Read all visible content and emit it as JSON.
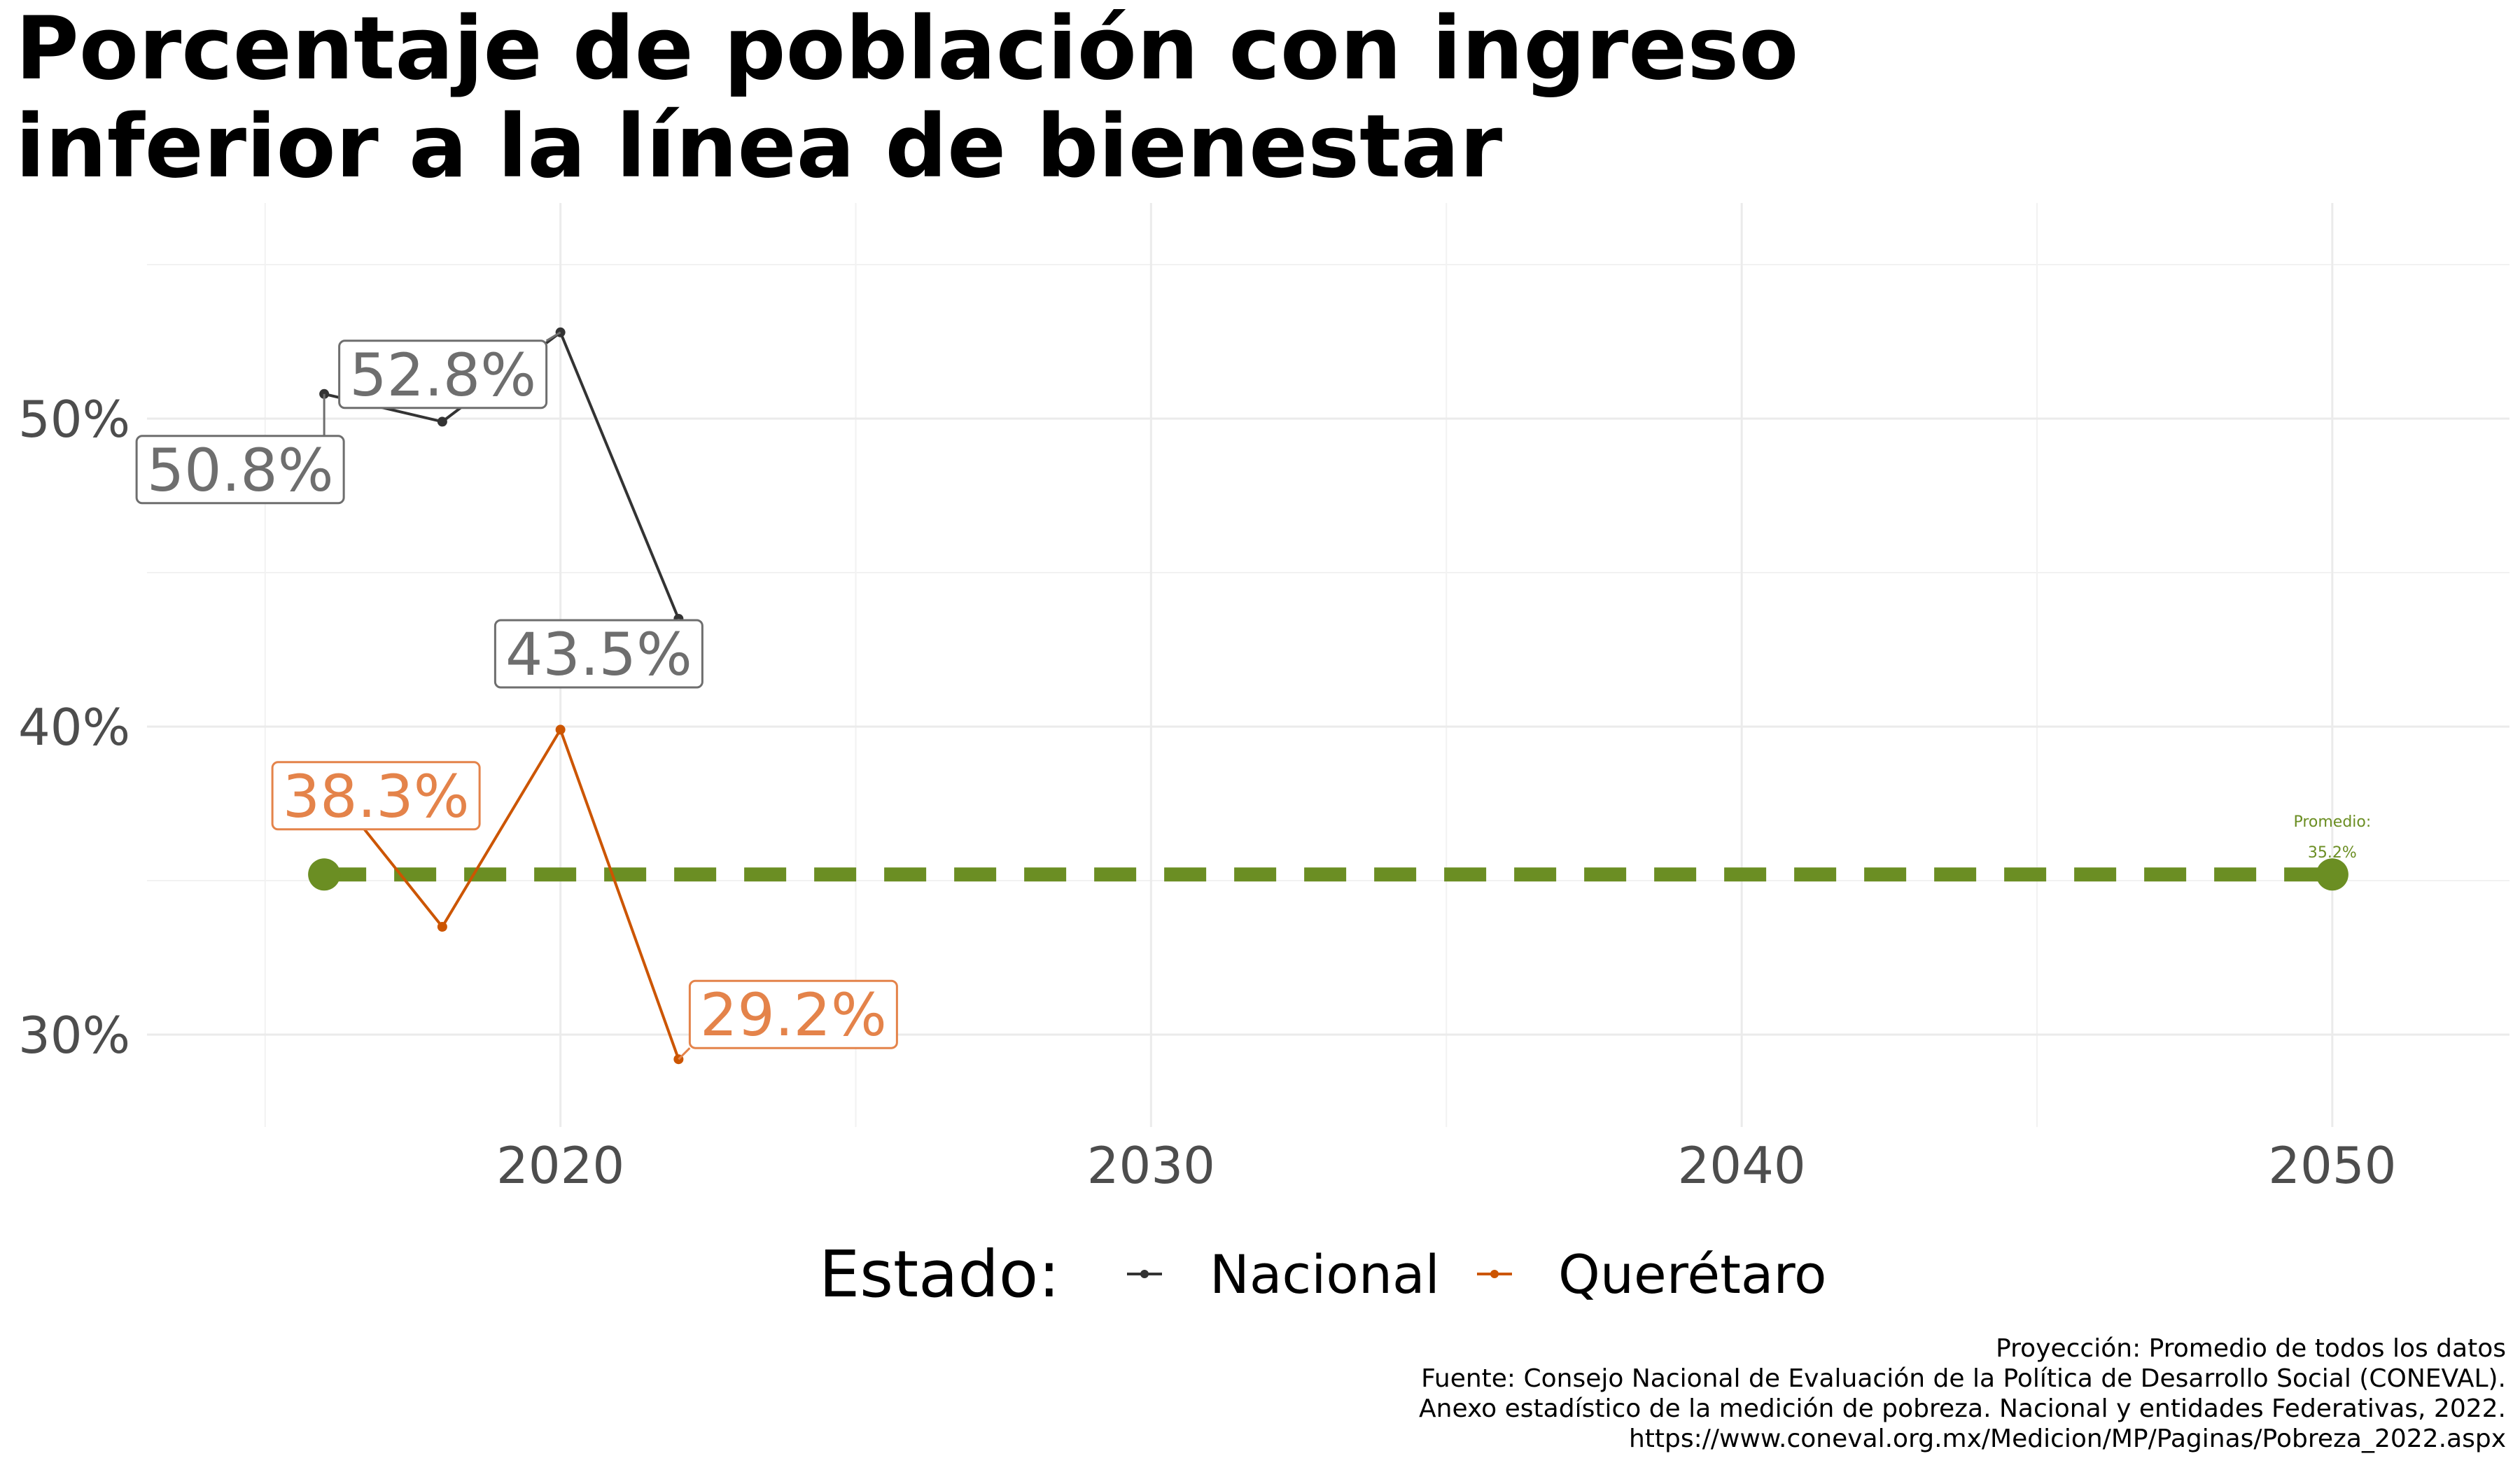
{
  "chart_data": {
    "type": "line",
    "title_lines": [
      "Porcentaje de población con ingreso",
      "inferior a la línea de bienestar"
    ],
    "xlabel": "",
    "ylabel": "",
    "x_ticks": [
      2020,
      2030,
      2040,
      2050
    ],
    "y_ticks": [
      30,
      40,
      50
    ],
    "y_tick_labels": [
      "30%",
      "40%",
      "50%"
    ],
    "xlim": [
      2013,
      2053
    ],
    "ylim": [
      27,
      57
    ],
    "grid": true,
    "legend": {
      "title": "Estado:",
      "placement": "bottom"
    },
    "series": [
      {
        "name": "Nacional",
        "color": "#333333",
        "label_color": "#6e6e6e",
        "x": [
          2016,
          2018,
          2020,
          2022
        ],
        "y": [
          50.8,
          49.9,
          52.8,
          43.5
        ],
        "labels": [
          {
            "index": 0,
            "text": "50.8%"
          },
          {
            "index": 2,
            "text": "52.8%"
          },
          {
            "index": 3,
            "text": "43.5%"
          }
        ]
      },
      {
        "name": "Querétaro",
        "color": "#cc5500",
        "label_color": "#e4834a",
        "x": [
          2016,
          2018,
          2020,
          2022
        ],
        "y": [
          38.3,
          33.5,
          39.9,
          29.2
        ],
        "labels": [
          {
            "index": 0,
            "text": "38.3%"
          },
          {
            "index": 3,
            "text": "29.2%"
          }
        ]
      }
    ],
    "projection": {
      "x": [
        2016,
        2050
      ],
      "y": 35.2,
      "color": "#6b8e23",
      "label_lines": [
        "Promedio:",
        "35.2%"
      ]
    },
    "caption_lines": [
      "Proyección: Promedio de todos los datos",
      "Fuente: Consejo Nacional de Evaluación de la Política de Desarrollo Social (CONEVAL).",
      "Anexo estadístico de la medición de pobreza. Nacional y entidades Federativas, 2022.",
      "https://www.coneval.org.mx/Medicion/MP/Paginas/Pobreza_2022.aspx"
    ]
  }
}
